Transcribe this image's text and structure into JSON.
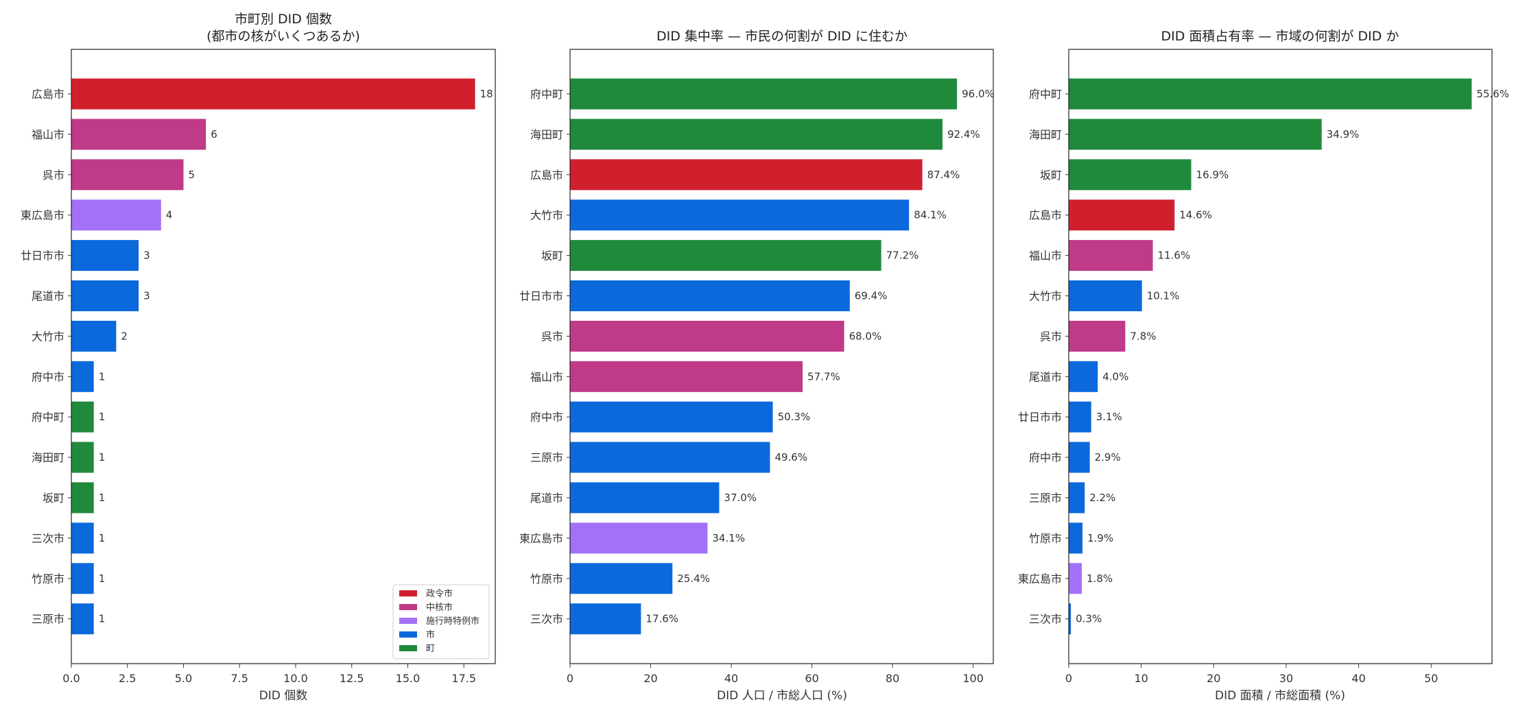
{
  "colors": {
    "seirei": "#d0202e",
    "chukaku": "#bf3a88",
    "shikou": "#a371f7",
    "shi": "#0b69dc",
    "cho": "#208a3c"
  },
  "legend": [
    {
      "label": "政令市",
      "color": "#d0202e"
    },
    {
      "label": "中核市",
      "color": "#bf3a88"
    },
    {
      "label": "施行時特例市",
      "color": "#a371f7"
    },
    {
      "label": "市",
      "color": "#0b69dc"
    },
    {
      "label": "町",
      "color": "#208a3c"
    }
  ],
  "chart_data": [
    {
      "type": "bar",
      "orientation": "horizontal",
      "title": "市町別 DID 個数",
      "subtitle": "(都市の核がいくつあるか)",
      "xlabel": "DID 個数",
      "xlim": [
        0,
        18.9
      ],
      "xticks": [
        "0.0",
        "2.5",
        "5.0",
        "7.5",
        "10.0",
        "12.5",
        "15.0",
        "17.5"
      ],
      "xtick_values": [
        0,
        2.5,
        5,
        7.5,
        10,
        12.5,
        15,
        17.5
      ],
      "legend_position": "lower-right",
      "categories": [
        "広島市",
        "福山市",
        "呉市",
        "東広島市",
        "廿日市市",
        "尾道市",
        "大竹市",
        "府中市",
        "府中町",
        "海田町",
        "坂町",
        "三次市",
        "竹原市",
        "三原市"
      ],
      "values": [
        18,
        6,
        5,
        4,
        3,
        3,
        2,
        1,
        1,
        1,
        1,
        1,
        1,
        1
      ],
      "value_labels": [
        "18",
        "6",
        "5",
        "4",
        "3",
        "3",
        "2",
        "1",
        "1",
        "1",
        "1",
        "1",
        "1",
        "1"
      ],
      "bar_colors": [
        "#d0202e",
        "#bf3a88",
        "#bf3a88",
        "#a371f7",
        "#0b69dc",
        "#0b69dc",
        "#0b69dc",
        "#0b69dc",
        "#208a3c",
        "#208a3c",
        "#208a3c",
        "#0b69dc",
        "#0b69dc",
        "#0b69dc"
      ]
    },
    {
      "type": "bar",
      "orientation": "horizontal",
      "title": "DID 集中率 — 市民の何割が DID に住むか",
      "xlabel": "DID 人口 / 市総人口 (%)",
      "xlim": [
        0,
        105
      ],
      "xticks": [
        "0",
        "20",
        "40",
        "60",
        "80",
        "100"
      ],
      "xtick_values": [
        0,
        20,
        40,
        60,
        80,
        100
      ],
      "categories": [
        "府中町",
        "海田町",
        "広島市",
        "大竹市",
        "坂町",
        "廿日市市",
        "呉市",
        "福山市",
        "府中市",
        "三原市",
        "尾道市",
        "東広島市",
        "竹原市",
        "三次市"
      ],
      "values": [
        96.0,
        92.4,
        87.4,
        84.1,
        77.2,
        69.4,
        68.0,
        57.7,
        50.3,
        49.6,
        37.0,
        34.1,
        25.4,
        17.6
      ],
      "value_labels": [
        "96.0%",
        "92.4%",
        "87.4%",
        "84.1%",
        "77.2%",
        "69.4%",
        "68.0%",
        "57.7%",
        "50.3%",
        "49.6%",
        "37.0%",
        "34.1%",
        "25.4%",
        "17.6%"
      ],
      "bar_colors": [
        "#208a3c",
        "#208a3c",
        "#d0202e",
        "#0b69dc",
        "#208a3c",
        "#0b69dc",
        "#bf3a88",
        "#bf3a88",
        "#0b69dc",
        "#0b69dc",
        "#0b69dc",
        "#a371f7",
        "#0b69dc",
        "#0b69dc"
      ]
    },
    {
      "type": "bar",
      "orientation": "horizontal",
      "title": "DID 面積占有率 — 市域の何割が DID か",
      "xlabel": "DID 面積 / 市総面積 (%)",
      "xlim": [
        0,
        58.4
      ],
      "xticks": [
        "0",
        "10",
        "20",
        "30",
        "40",
        "50"
      ],
      "xtick_values": [
        0,
        10,
        20,
        30,
        40,
        50
      ],
      "categories": [
        "府中町",
        "海田町",
        "坂町",
        "広島市",
        "福山市",
        "大竹市",
        "呉市",
        "尾道市",
        "廿日市市",
        "府中市",
        "三原市",
        "竹原市",
        "東広島市",
        "三次市"
      ],
      "values": [
        55.6,
        34.9,
        16.9,
        14.6,
        11.6,
        10.1,
        7.8,
        4.0,
        3.1,
        2.9,
        2.2,
        1.9,
        1.8,
        0.3
      ],
      "value_labels": [
        "55.6%",
        "34.9%",
        "16.9%",
        "14.6%",
        "11.6%",
        "10.1%",
        "7.8%",
        "4.0%",
        "3.1%",
        "2.9%",
        "2.2%",
        "1.9%",
        "1.8%",
        "0.3%"
      ],
      "bar_colors": [
        "#208a3c",
        "#208a3c",
        "#208a3c",
        "#d0202e",
        "#bf3a88",
        "#0b69dc",
        "#bf3a88",
        "#0b69dc",
        "#0b69dc",
        "#0b69dc",
        "#0b69dc",
        "#0b69dc",
        "#a371f7",
        "#0b69dc"
      ]
    }
  ]
}
